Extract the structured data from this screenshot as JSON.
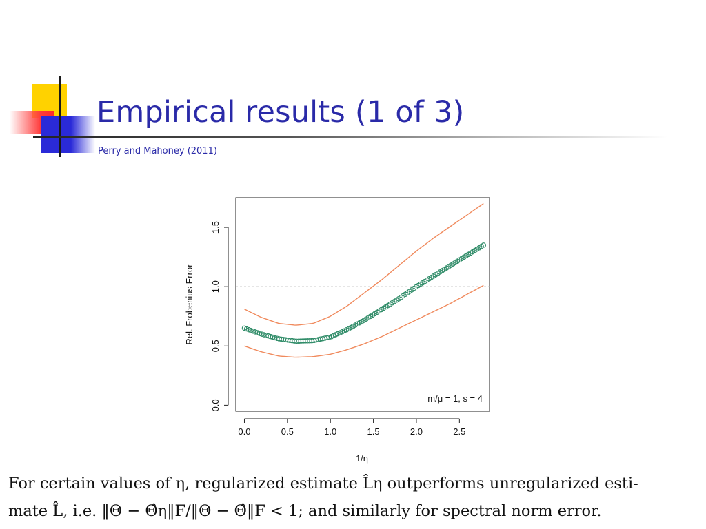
{
  "slide": {
    "title": "Empirical results (1 of 3)",
    "subtitle": "Perry and Mahoney  (2011)",
    "caption_line1": "For certain values of η, regularized estimate L̂η outperforms unregularized esti-",
    "caption_line2": "mate L̂, i.e. ‖Θ − Θ̂η‖F/‖Θ − Θ̂‖F < 1; and similarly for spectral norm error."
  },
  "colors": {
    "title": "#2a2aa8",
    "band": "#f08a5d",
    "points": "#2e8b67",
    "reference_line": "#bbbbbb"
  },
  "chart_data": {
    "type": "scatter",
    "xlabel": "1/η",
    "ylabel": "Rel. Frobenius Error",
    "xlim": [
      -0.1,
      2.85
    ],
    "ylim": [
      -0.05,
      1.75
    ],
    "xticks": [
      "0.0",
      "0.5",
      "1.0",
      "1.5",
      "2.0",
      "2.5"
    ],
    "yticks": [
      "0.0",
      "0.5",
      "1.0",
      "1.5"
    ],
    "reference_line_y": 1.0,
    "annotation": "m/μ = 1, s = 4",
    "series": [
      {
        "style": "points",
        "x": [
          0.0,
          0.2,
          0.4,
          0.6,
          0.8,
          1.0,
          1.2,
          1.4,
          1.6,
          1.8,
          2.0,
          2.2,
          2.4,
          2.6,
          2.78
        ],
        "y": [
          0.65,
          0.6,
          0.56,
          0.54,
          0.545,
          0.575,
          0.64,
          0.72,
          0.81,
          0.9,
          1.0,
          1.09,
          1.18,
          1.27,
          1.35
        ]
      },
      {
        "style": "line",
        "x": [
          0.0,
          0.2,
          0.4,
          0.6,
          0.8,
          1.0,
          1.2,
          1.4,
          1.6,
          1.8,
          2.0,
          2.2,
          2.4,
          2.6,
          2.78
        ],
        "y": [
          0.81,
          0.74,
          0.69,
          0.675,
          0.69,
          0.75,
          0.84,
          0.95,
          1.06,
          1.18,
          1.3,
          1.41,
          1.51,
          1.61,
          1.7
        ]
      },
      {
        "style": "line",
        "x": [
          0.0,
          0.2,
          0.4,
          0.6,
          0.8,
          1.0,
          1.2,
          1.4,
          1.6,
          1.8,
          2.0,
          2.2,
          2.4,
          2.6,
          2.78
        ],
        "y": [
          0.5,
          0.45,
          0.415,
          0.405,
          0.41,
          0.43,
          0.47,
          0.52,
          0.58,
          0.65,
          0.72,
          0.79,
          0.86,
          0.94,
          1.01
        ]
      }
    ]
  }
}
